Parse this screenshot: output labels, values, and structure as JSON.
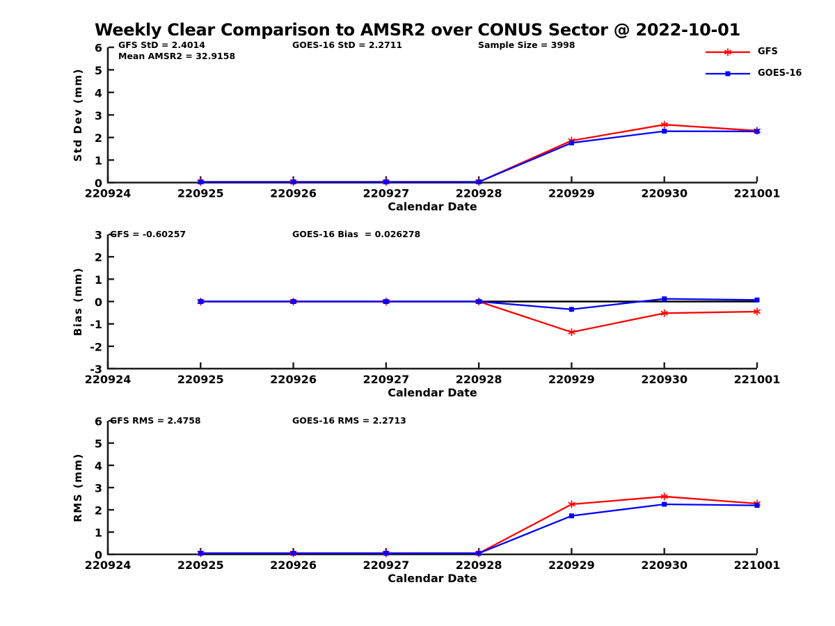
{
  "figure": {
    "title": "Weekly Clear Comparison to AMSR2 over CONUS Sector @ 2022-10-01",
    "background": "#ffffff",
    "axis_color": "#1a1a1a",
    "text_color": "#000000"
  },
  "legend": {
    "position": "top-right",
    "items": [
      {
        "label": "GFS",
        "color": "#ff0000",
        "marker": "asterisk"
      },
      {
        "label": "GOES-16",
        "color": "#0000ff",
        "marker": "square"
      }
    ]
  },
  "chart_data": [
    {
      "id": "std-dev",
      "type": "line",
      "title": "",
      "xlabel": "Calendar Date",
      "ylabel": "Std Dev (mm)",
      "ylim": [
        0,
        6
      ],
      "yticks": [
        0,
        1,
        2,
        3,
        4,
        5,
        6
      ],
      "grid": false,
      "categories": [
        "220924",
        "220925",
        "220926",
        "220927",
        "220928",
        "220929",
        "220930",
        "221001"
      ],
      "zero_line": false,
      "series": [
        {
          "name": "GFS",
          "color": "#ff0000",
          "marker": "asterisk",
          "x": [
            1,
            2,
            3,
            4,
            5,
            6,
            7
          ],
          "values": [
            0.03,
            0.03,
            0.03,
            0.03,
            1.86,
            2.57,
            2.3
          ]
        },
        {
          "name": "GOES-16",
          "color": "#0000ff",
          "marker": "square",
          "x": [
            1,
            2,
            3,
            4,
            5,
            6,
            7
          ],
          "values": [
            0.03,
            0.03,
            0.03,
            0.03,
            1.76,
            2.28,
            2.27
          ]
        }
      ],
      "annotations": [
        {
          "text": "GFS StD = 2.4014"
        },
        {
          "text": "GOES-16 StD = 2.2711"
        },
        {
          "text": "Sample Size = 3998"
        },
        {
          "text": "Mean AMSR2 = 32.9158"
        }
      ]
    },
    {
      "id": "bias",
      "type": "line",
      "title": "",
      "xlabel": "Calendar Date",
      "ylabel": "Bias (mm)",
      "ylim": [
        -3,
        3
      ],
      "yticks": [
        -3,
        -2,
        -1,
        0,
        1,
        2,
        3
      ],
      "grid": false,
      "categories": [
        "220924",
        "220925",
        "220926",
        "220927",
        "220928",
        "220929",
        "220930",
        "221001"
      ],
      "zero_line": true,
      "series": [
        {
          "name": "GFS",
          "color": "#ff0000",
          "marker": "asterisk",
          "x": [
            1,
            2,
            3,
            4,
            5,
            6,
            7
          ],
          "values": [
            0,
            0,
            0,
            0,
            -1.37,
            -0.52,
            -0.45
          ]
        },
        {
          "name": "GOES-16",
          "color": "#0000ff",
          "marker": "square",
          "x": [
            1,
            2,
            3,
            4,
            5,
            6,
            7
          ],
          "values": [
            0,
            0,
            0,
            0,
            -0.35,
            0.12,
            0.07
          ]
        }
      ],
      "annotations": [
        {
          "text": "GFS = -0.60257"
        },
        {
          "text": "GOES-16 Bias  = 0.026278"
        }
      ]
    },
    {
      "id": "rms",
      "type": "line",
      "title": "",
      "xlabel": "Calendar Date",
      "ylabel": "RMS (mm)",
      "ylim": [
        0,
        6
      ],
      "yticks": [
        0,
        1,
        2,
        3,
        4,
        5,
        6
      ],
      "grid": false,
      "categories": [
        "220924",
        "220925",
        "220926",
        "220927",
        "220928",
        "220929",
        "220930",
        "221001"
      ],
      "zero_line": false,
      "series": [
        {
          "name": "GFS",
          "color": "#ff0000",
          "marker": "asterisk",
          "x": [
            1,
            2,
            3,
            4,
            5,
            6,
            7
          ],
          "values": [
            0.05,
            0.05,
            0.05,
            0.05,
            2.25,
            2.6,
            2.28
          ]
        },
        {
          "name": "GOES-16",
          "color": "#0000ff",
          "marker": "square",
          "x": [
            1,
            2,
            3,
            4,
            5,
            6,
            7
          ],
          "values": [
            0.05,
            0.05,
            0.05,
            0.05,
            1.73,
            2.25,
            2.2
          ]
        }
      ],
      "annotations": [
        {
          "text": "GFS RMS = 2.4758"
        },
        {
          "text": "GOES-16 RMS = 2.2713"
        }
      ]
    }
  ]
}
